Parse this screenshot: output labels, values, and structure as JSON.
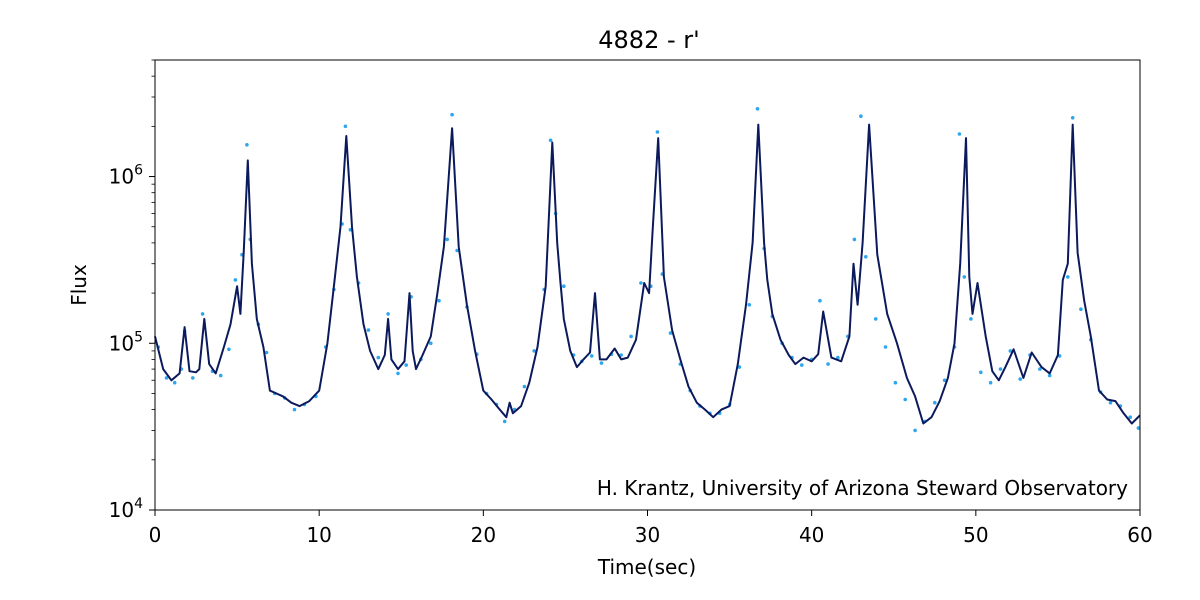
{
  "chart_data": {
    "type": "line",
    "title": "4882 - r'",
    "xlabel": "Time(sec)",
    "ylabel": "Flux",
    "annotation": "H. Krantz, University of Arizona Steward Observatory",
    "x_scale": "linear",
    "y_scale": "log",
    "xlim": [
      0,
      60
    ],
    "ylim": [
      10000,
      5000000
    ],
    "x_ticks": [
      0,
      10,
      20,
      30,
      40,
      50,
      60
    ],
    "x_tick_labels": [
      "0",
      "10",
      "20",
      "30",
      "40",
      "50",
      "60"
    ],
    "y_ticks": [
      {
        "value": 10000,
        "base": "10",
        "exp": "4"
      },
      {
        "value": 100000,
        "base": "10",
        "exp": "5"
      },
      {
        "value": 1000000,
        "base": "10",
        "exp": "6"
      }
    ],
    "grid": false,
    "colors": {
      "line": "#0b1a5c",
      "points": "#2ea6ee",
      "axes": "#000000"
    },
    "series": [
      {
        "style": "line",
        "x": [
          0,
          0.5,
          1.0,
          1.5,
          1.8,
          2.1,
          2.5,
          2.7,
          3.0,
          3.3,
          3.7,
          4.2,
          4.6,
          5.0,
          5.2,
          5.4,
          5.65,
          5.9,
          6.2,
          6.6,
          7.0,
          7.4,
          7.8,
          8.3,
          8.8,
          9.4,
          10.0,
          10.5,
          10.9,
          11.3,
          11.65,
          12.0,
          12.3,
          12.7,
          13.1,
          13.6,
          14.0,
          14.2,
          14.4,
          14.8,
          15.2,
          15.5,
          15.7,
          15.9,
          16.3,
          16.8,
          17.2,
          17.6,
          18.1,
          18.5,
          19.0,
          19.5,
          20.0,
          20.5,
          21.0,
          21.4,
          21.6,
          21.8,
          22.3,
          22.8,
          23.3,
          23.8,
          24.2,
          24.5,
          24.7,
          24.9,
          25.3,
          25.7,
          26.1,
          26.5,
          26.8,
          27.1,
          27.5,
          28.0,
          28.4,
          28.8,
          29.3,
          29.8,
          30.1,
          30.3,
          30.65,
          31.0,
          31.5,
          32.0,
          32.5,
          33.0,
          33.5,
          34.0,
          34.5,
          35.0,
          35.5,
          36.0,
          36.4,
          36.75,
          37.1,
          37.3,
          37.6,
          38.1,
          38.6,
          39.0,
          39.5,
          40.0,
          40.4,
          40.7,
          41.2,
          41.8,
          42.3,
          42.55,
          42.8,
          43.1,
          43.5,
          44.0,
          44.6,
          45.2,
          45.8,
          46.3,
          46.8,
          47.3,
          47.8,
          48.3,
          48.7,
          49.05,
          49.4,
          49.6,
          49.8,
          50.1,
          50.6,
          51.0,
          51.4,
          51.8,
          52.3,
          52.9,
          53.4,
          54.0,
          54.5,
          55.0,
          55.3,
          55.6,
          55.9,
          56.2,
          56.6,
          57.0,
          57.5,
          58.0,
          58.5,
          59.0,
          59.5,
          60.0
        ],
        "y": [
          110000,
          70000,
          60000,
          66000,
          125000,
          68000,
          67000,
          70000,
          140000,
          75000,
          66000,
          95000,
          130000,
          220000,
          150000,
          350000,
          1250000,
          300000,
          140000,
          95000,
          52000,
          50000,
          48000,
          44000,
          42000,
          45000,
          52000,
          100000,
          220000,
          500000,
          1750000,
          500000,
          250000,
          130000,
          90000,
          70000,
          85000,
          140000,
          80000,
          70000,
          78000,
          200000,
          90000,
          70000,
          85000,
          110000,
          200000,
          380000,
          1950000,
          380000,
          170000,
          90000,
          52000,
          46000,
          40000,
          36000,
          44000,
          38000,
          42000,
          58000,
          95000,
          220000,
          1600000,
          400000,
          230000,
          140000,
          90000,
          72000,
          80000,
          88000,
          200000,
          80000,
          80000,
          93000,
          80000,
          82000,
          105000,
          230000,
          200000,
          450000,
          1700000,
          250000,
          120000,
          80000,
          55000,
          44000,
          40000,
          36000,
          40000,
          42000,
          75000,
          170000,
          400000,
          2050000,
          400000,
          240000,
          150000,
          105000,
          85000,
          75000,
          82000,
          78000,
          86000,
          155000,
          82000,
          78000,
          110000,
          300000,
          170000,
          400000,
          2050000,
          340000,
          150000,
          100000,
          62000,
          48000,
          33000,
          36000,
          45000,
          62000,
          100000,
          300000,
          1700000,
          250000,
          150000,
          230000,
          110000,
          68000,
          60000,
          72000,
          92000,
          62000,
          88000,
          72000,
          66000,
          85000,
          240000,
          300000,
          2050000,
          350000,
          180000,
          110000,
          52000,
          46000,
          45000,
          38000,
          33000,
          37000
        ]
      },
      {
        "style": "points",
        "x": [
          0.2,
          0.7,
          1.2,
          1.6,
          1.8,
          2.3,
          2.9,
          3.5,
          4.0,
          4.5,
          4.9,
          5.3,
          5.6,
          5.8,
          6.3,
          6.8,
          7.3,
          7.9,
          8.5,
          9.1,
          9.8,
          10.4,
          10.9,
          11.4,
          11.6,
          11.9,
          12.4,
          13.0,
          13.6,
          14.2,
          14.8,
          15.3,
          15.6,
          16.2,
          16.8,
          17.3,
          17.8,
          18.1,
          18.4,
          19.0,
          19.6,
          20.2,
          20.8,
          21.3,
          21.9,
          22.5,
          23.1,
          23.7,
          24.1,
          24.4,
          24.9,
          25.5,
          26.0,
          26.6,
          27.2,
          27.8,
          28.4,
          29.0,
          29.6,
          30.2,
          30.6,
          30.9,
          31.4,
          32.0,
          32.6,
          33.2,
          33.8,
          34.4,
          35.0,
          35.6,
          36.2,
          36.7,
          37.1,
          37.6,
          38.2,
          38.8,
          39.4,
          40.0,
          40.5,
          41.0,
          41.6,
          42.2,
          42.6,
          43.0,
          43.3,
          43.9,
          44.5,
          45.1,
          45.7,
          46.3,
          46.9,
          47.5,
          48.1,
          48.7,
          49.0,
          49.3,
          49.7,
          50.3,
          50.9,
          51.5,
          52.1,
          52.7,
          53.3,
          53.9,
          54.5,
          55.1,
          55.6,
          55.9,
          56.4,
          57.0,
          57.6,
          58.2,
          58.8,
          59.4,
          59.9
        ],
        "y": [
          95000,
          62000,
          58000,
          70000,
          118000,
          62000,
          150000,
          68000,
          64000,
          92000,
          240000,
          340000,
          1550000,
          420000,
          130000,
          88000,
          50000,
          47000,
          40000,
          43000,
          48000,
          95000,
          210000,
          520000,
          2000000,
          480000,
          230000,
          120000,
          82000,
          150000,
          66000,
          74000,
          190000,
          80000,
          100000,
          180000,
          420000,
          2350000,
          360000,
          165000,
          86000,
          50000,
          43000,
          34000,
          40000,
          55000,
          90000,
          210000,
          1650000,
          600000,
          220000,
          85000,
          78000,
          84000,
          76000,
          86000,
          85000,
          110000,
          230000,
          220000,
          1850000,
          260000,
          115000,
          75000,
          52000,
          42000,
          38000,
          38000,
          43000,
          72000,
          170000,
          2550000,
          370000,
          145000,
          100000,
          82000,
          74000,
          80000,
          180000,
          75000,
          82000,
          110000,
          420000,
          2300000,
          330000,
          140000,
          95000,
          58000,
          46000,
          30000,
          34000,
          44000,
          60000,
          95000,
          1800000,
          250000,
          140000,
          67000,
          58000,
          70000,
          90000,
          61000,
          85000,
          70000,
          64000,
          84000,
          250000,
          2250000,
          160000,
          105000,
          51000,
          44000,
          42000,
          36000,
          31000
        ]
      }
    ]
  }
}
